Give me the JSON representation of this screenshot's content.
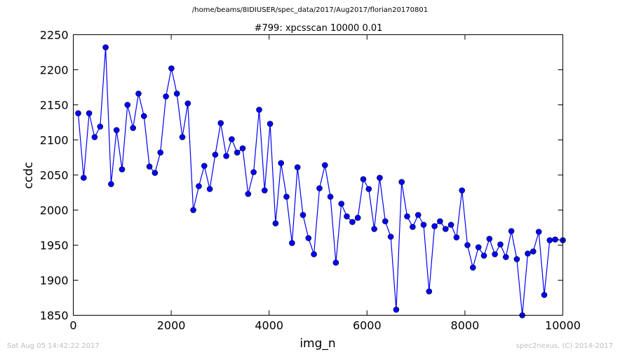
{
  "suptitle": "/home/beams/8IDIUSER/spec_data/2017/Aug2017/florian20170801",
  "footer": {
    "timestamp": "Sat Aug 05 14:42:22 2017",
    "credit": "spec2nexus, (C) 2014-2017"
  },
  "chart_data": {
    "type": "line",
    "title": "#799: xpcsscan 10000 0.01",
    "xlabel": "img_n",
    "ylabel": "ccdc",
    "xlim": [
      0,
      10000
    ],
    "ylim": [
      1850,
      2250
    ],
    "xticks": [
      0,
      2000,
      4000,
      6000,
      8000,
      10000
    ],
    "yticks": [
      1850,
      1900,
      1950,
      2000,
      2050,
      2100,
      2150,
      2200,
      2250
    ],
    "grid": false,
    "colors": {
      "line": "#0000ff",
      "marker": "#0000ff"
    },
    "series": [
      {
        "x": [
          100,
          212,
          324,
          436,
          548,
          660,
          772,
          884,
          996,
          1108,
          1220,
          1332,
          1444,
          1556,
          1668,
          1780,
          1892,
          2004,
          2116,
          2228,
          2340,
          2452,
          2564,
          2676,
          2788,
          2900,
          3012,
          3124,
          3236,
          3348,
          3460,
          3572,
          3684,
          3796,
          3908,
          4020,
          4132,
          4244,
          4356,
          4468,
          4580,
          4692,
          4804,
          4916,
          5028,
          5140,
          5252,
          5364,
          5476,
          5588,
          5700,
          5812,
          5924,
          6036,
          6148,
          6260,
          6372,
          6484,
          6596,
          6708,
          6820,
          6932,
          7044,
          7156,
          7268,
          7380,
          7492,
          7604,
          7716,
          7828,
          7940,
          8052,
          8164,
          8276,
          8388,
          8500,
          8612,
          8724,
          8836,
          8948,
          9060,
          9172,
          9284,
          9396,
          9508,
          9620,
          9732,
          9844,
          10000
        ],
        "values": [
          2138,
          2046,
          2138,
          2104,
          2119,
          2232,
          2037,
          2114,
          2058,
          2150,
          2117,
          2166,
          2134,
          2062,
          2053,
          2082,
          2162,
          2202,
          2166,
          2104,
          2152,
          2000,
          2034,
          2063,
          2030,
          2079,
          2124,
          2077,
          2101,
          2082,
          2088,
          2023,
          2054,
          2143,
          2028,
          2123,
          1981,
          2067,
          2019,
          1953,
          2061,
          1993,
          1960,
          1937,
          2031,
          2064,
          2019,
          1925,
          2009,
          1991,
          1983,
          1989,
          2044,
          2030,
          1973,
          2046,
          1984,
          1962,
          1858,
          2040,
          1991,
          1976,
          1993,
          1979,
          1884,
          1977,
          1984,
          1973,
          1979,
          1961,
          2028,
          1950,
          1918,
          1947,
          1935,
          1959,
          1937,
          1951,
          1933,
          1970,
          1930,
          1850,
          1938,
          1941,
          1969,
          1879,
          1957,
          1958,
          1957
        ]
      }
    ]
  }
}
